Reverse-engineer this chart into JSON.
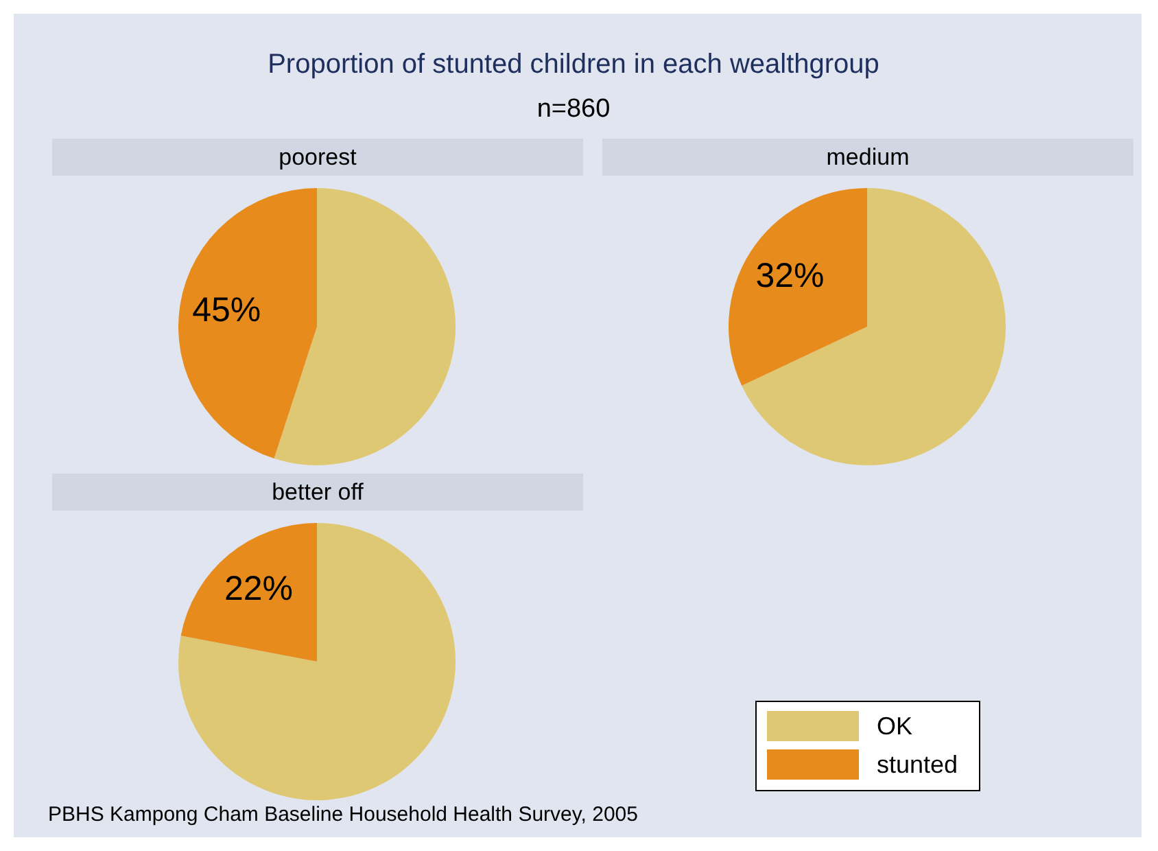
{
  "chart_data": [
    {
      "type": "other",
      "title": "Proportion of stunted children in each wealthgroup",
      "subtitle": "n=860",
      "annotations": [
        "PBHS Kampong Cham Baseline Household Health Survey, 2005"
      ]
    },
    {
      "type": "pie",
      "title": "poorest",
      "categories": [
        null,
        null
      ],
      "values": [
        55,
        45
      ],
      "colors": [
        "#dfc874",
        "#e88b1d"
      ],
      "value_labels": [
        null,
        "45%"
      ]
    },
    {
      "type": "pie",
      "title": "medium",
      "categories": [
        null,
        null
      ],
      "values": [
        68,
        32
      ],
      "colors": [
        "#dfc874",
        "#e88b1d"
      ],
      "value_labels": [
        null,
        "32%"
      ]
    },
    {
      "type": "pie",
      "title": "better off",
      "categories": [
        "OK",
        "stunted"
      ],
      "values": [
        78,
        22
      ],
      "colors": [
        "#dfc874",
        "#e88b1d"
      ],
      "value_labels": [
        null,
        "22%"
      ],
      "legend": "bottom right"
    }
  ]
}
